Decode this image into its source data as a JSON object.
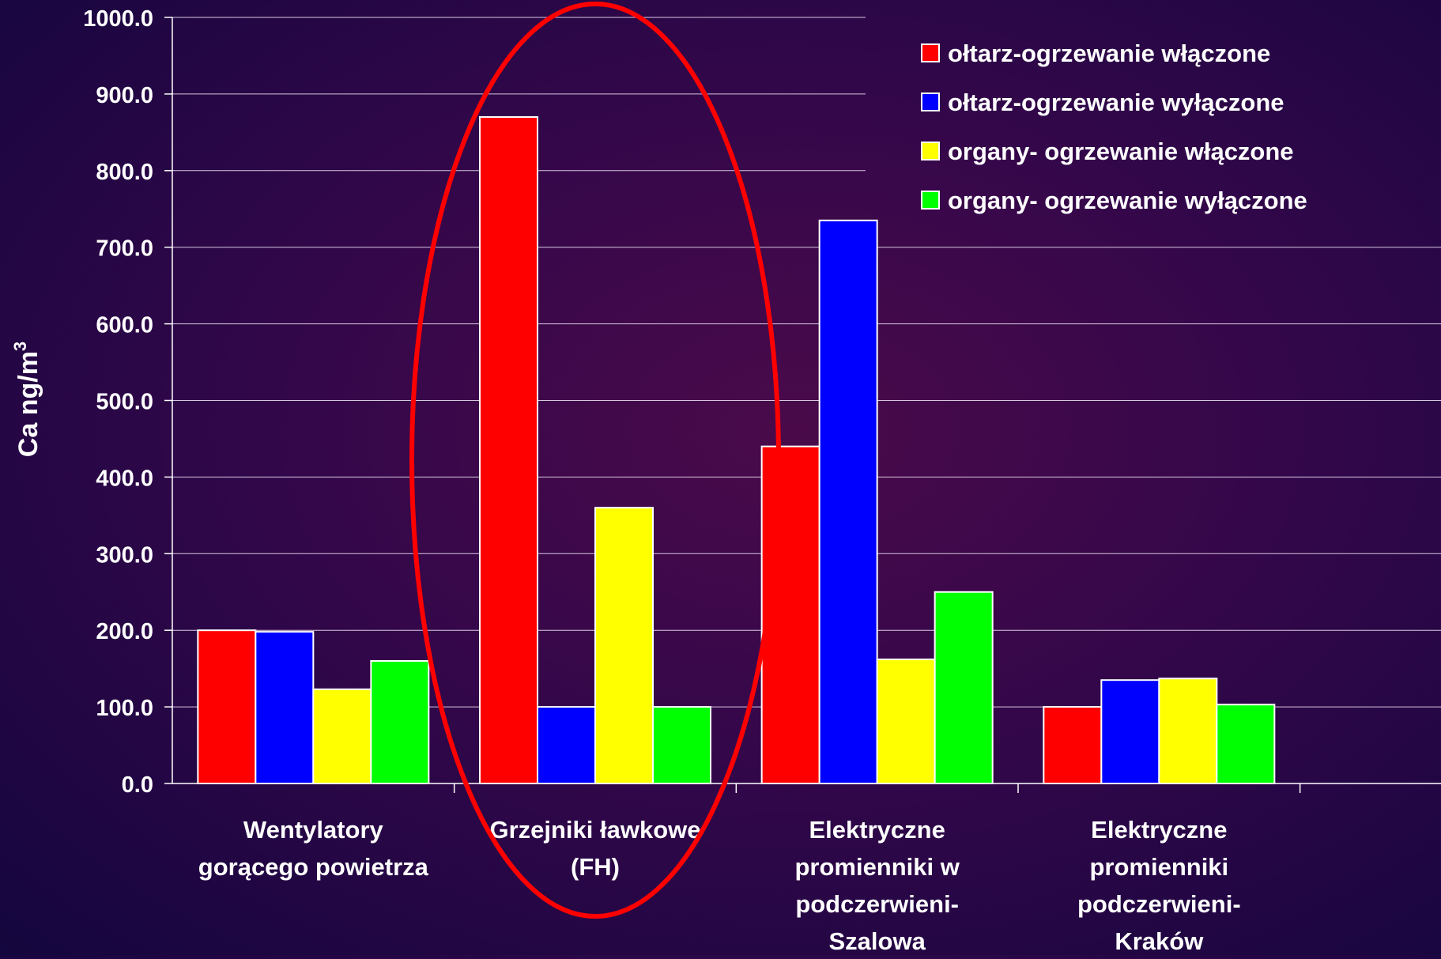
{
  "chart_data": {
    "type": "bar",
    "ylabel": "Ca ng/m",
    "ylabel_superscript": "3",
    "ylim": [
      0,
      1000
    ],
    "yticks": [
      "0.0",
      "100.0",
      "200.0",
      "300.0",
      "400.0",
      "500.0",
      "600.0",
      "700.0",
      "800.0",
      "900.0",
      "1000.0"
    ],
    "grid": true,
    "legend_position": "top-right",
    "categories": [
      [
        "Wentylatory",
        "gorącego powietrza"
      ],
      [
        "Grzejniki ławkowe",
        "(FH)"
      ],
      [
        "Elektryczne",
        "promienniki w",
        "podczerwieni-",
        "Szalowa"
      ],
      [
        "Elektryczne",
        "promienniki",
        "podczerwieni-",
        "Kraków"
      ]
    ],
    "series": [
      {
        "name": "ołtarz-ogrzewanie włączone",
        "color": "#ff0000",
        "values": [
          200,
          870,
          440,
          100
        ]
      },
      {
        "name": "ołtarz-ogrzewanie wyłączone",
        "color": "#0000ff",
        "values": [
          198,
          100,
          735,
          135
        ]
      },
      {
        "name": "organy- ogrzewanie włączone",
        "color": "#ffff00",
        "values": [
          123,
          360,
          162,
          137
        ]
      },
      {
        "name": "organy- ogrzewanie wyłączone",
        "color": "#00ff00",
        "values": [
          160,
          100,
          250,
          103
        ]
      }
    ],
    "annotations": [
      {
        "type": "ellipse-highlight",
        "category_index": 1,
        "color": "#ff0000"
      }
    ]
  }
}
